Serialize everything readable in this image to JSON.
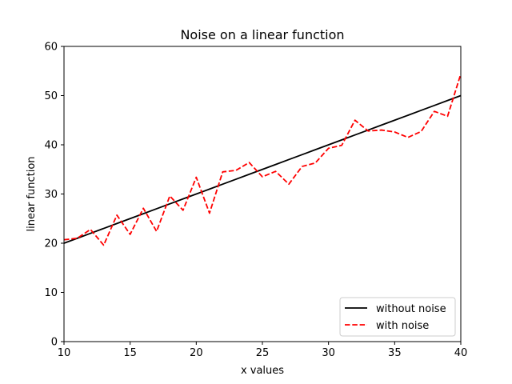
{
  "chart_data": {
    "type": "line",
    "title": "Noise on a linear function",
    "xlabel": "x values",
    "ylabel": "linear function",
    "xlim": [
      10,
      40
    ],
    "ylim": [
      0,
      60
    ],
    "xticks": [
      10,
      15,
      20,
      25,
      30,
      35,
      40
    ],
    "yticks": [
      0,
      10,
      20,
      30,
      40,
      50,
      60
    ],
    "grid": false,
    "legend_position": "lower-right",
    "x": [
      10,
      11,
      12,
      13,
      14,
      15,
      16,
      17,
      18,
      19,
      20,
      21,
      22,
      23,
      24,
      25,
      26,
      27,
      28,
      29,
      30,
      31,
      32,
      33,
      34,
      35,
      36,
      37,
      38,
      39,
      40
    ],
    "series": [
      {
        "name": "without noise",
        "color": "#000000",
        "style": "solid",
        "values": [
          20,
          21,
          22,
          23,
          24,
          25,
          26,
          27,
          28,
          29,
          30,
          31,
          32,
          33,
          34,
          35,
          36,
          37,
          38,
          39,
          40,
          41,
          42,
          43,
          44,
          45,
          46,
          47,
          48,
          49,
          50
        ]
      },
      {
        "name": "with noise",
        "color": "#ff0000",
        "style": "dashed",
        "values": [
          20.7,
          21.0,
          22.8,
          19.6,
          25.7,
          21.8,
          27.1,
          22.4,
          29.6,
          26.7,
          33.4,
          26.1,
          34.5,
          34.8,
          36.4,
          33.5,
          34.6,
          32.0,
          35.6,
          36.3,
          39.3,
          39.9,
          45.0,
          42.8,
          43.0,
          42.6,
          41.5,
          42.7,
          46.8,
          45.8,
          54.4
        ]
      }
    ]
  }
}
